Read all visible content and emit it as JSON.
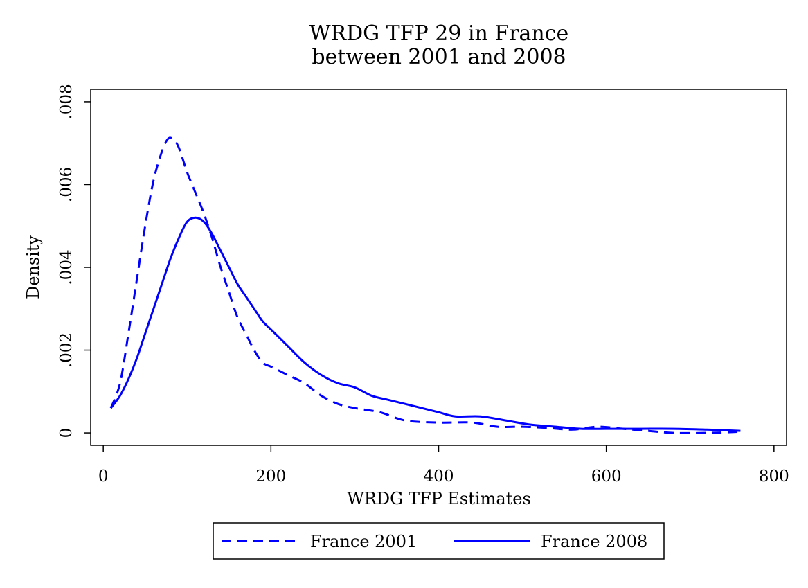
{
  "chart_data": {
    "type": "line",
    "title_line1": "WRDG TFP 29 in France",
    "title_line2": "between 2001 and 2008",
    "xlabel": "WRDG TFP Estimates",
    "ylabel": "Density",
    "xlim": [
      -15,
      815
    ],
    "ylim": [
      -0.0003,
      0.0083
    ],
    "x_ticks": [
      0,
      200,
      400,
      600,
      800
    ],
    "x_tick_labels": [
      "0",
      "200",
      "400",
      "600",
      "800"
    ],
    "y_ticks": [
      0,
      0.002,
      0.004,
      0.006,
      0.008
    ],
    "y_tick_labels": [
      "0",
      ".002",
      ".004",
      ".006",
      ".008"
    ],
    "grid": false,
    "legend_position": "bottom",
    "colors": {
      "series": "#0000ff",
      "axis": "#000000",
      "background": "#ffffff"
    },
    "series": [
      {
        "name": "France 2001",
        "style": "dashed",
        "points": [
          [
            9,
            0.0006
          ],
          [
            20,
            0.0012
          ],
          [
            30,
            0.0024
          ],
          [
            40,
            0.0037
          ],
          [
            50,
            0.005
          ],
          [
            60,
            0.0061
          ],
          [
            70,
            0.0068
          ],
          [
            77,
            0.0071
          ],
          [
            83,
            0.0071
          ],
          [
            90,
            0.0069
          ],
          [
            100,
            0.0063
          ],
          [
            110,
            0.0058
          ],
          [
            120,
            0.0053
          ],
          [
            130,
            0.0047
          ],
          [
            140,
            0.004
          ],
          [
            150,
            0.0034
          ],
          [
            160,
            0.0028
          ],
          [
            170,
            0.0024
          ],
          [
            180,
            0.002
          ],
          [
            190,
            0.0017
          ],
          [
            200,
            0.0016
          ],
          [
            220,
            0.0014
          ],
          [
            240,
            0.0012
          ],
          [
            260,
            0.0009
          ],
          [
            280,
            0.0007
          ],
          [
            300,
            0.0006
          ],
          [
            330,
            0.0005
          ],
          [
            360,
            0.0003
          ],
          [
            400,
            0.00025
          ],
          [
            440,
            0.00025
          ],
          [
            470,
            0.00015
          ],
          [
            500,
            0.00015
          ],
          [
            530,
            0.00012
          ],
          [
            560,
            8e-05
          ],
          [
            590,
            0.00015
          ],
          [
            620,
            0.0001
          ],
          [
            650,
            5e-05
          ],
          [
            680,
            0.0
          ],
          [
            720,
            0.0
          ],
          [
            760,
            3e-05
          ]
        ]
      },
      {
        "name": "France 2008",
        "style": "solid",
        "points": [
          [
            9,
            0.0006
          ],
          [
            20,
            0.0009
          ],
          [
            30,
            0.0013
          ],
          [
            40,
            0.0018
          ],
          [
            50,
            0.0024
          ],
          [
            60,
            0.003
          ],
          [
            70,
            0.0036
          ],
          [
            80,
            0.0042
          ],
          [
            90,
            0.0047
          ],
          [
            100,
            0.0051
          ],
          [
            110,
            0.0052
          ],
          [
            120,
            0.0051
          ],
          [
            130,
            0.0048
          ],
          [
            140,
            0.0044
          ],
          [
            150,
            0.004
          ],
          [
            160,
            0.0036
          ],
          [
            170,
            0.0033
          ],
          [
            180,
            0.003
          ],
          [
            190,
            0.0027
          ],
          [
            200,
            0.0025
          ],
          [
            220,
            0.0021
          ],
          [
            240,
            0.0017
          ],
          [
            260,
            0.0014
          ],
          [
            280,
            0.0012
          ],
          [
            300,
            0.0011
          ],
          [
            320,
            0.0009
          ],
          [
            340,
            0.0008
          ],
          [
            360,
            0.0007
          ],
          [
            380,
            0.0006
          ],
          [
            400,
            0.0005
          ],
          [
            420,
            0.0004
          ],
          [
            450,
            0.0004
          ],
          [
            480,
            0.0003
          ],
          [
            510,
            0.0002
          ],
          [
            540,
            0.00015
          ],
          [
            570,
            0.0001
          ],
          [
            600,
            0.0001
          ],
          [
            640,
            0.0001
          ],
          [
            680,
            0.0001
          ],
          [
            720,
            8e-05
          ],
          [
            760,
            5e-05
          ]
        ]
      }
    ]
  }
}
